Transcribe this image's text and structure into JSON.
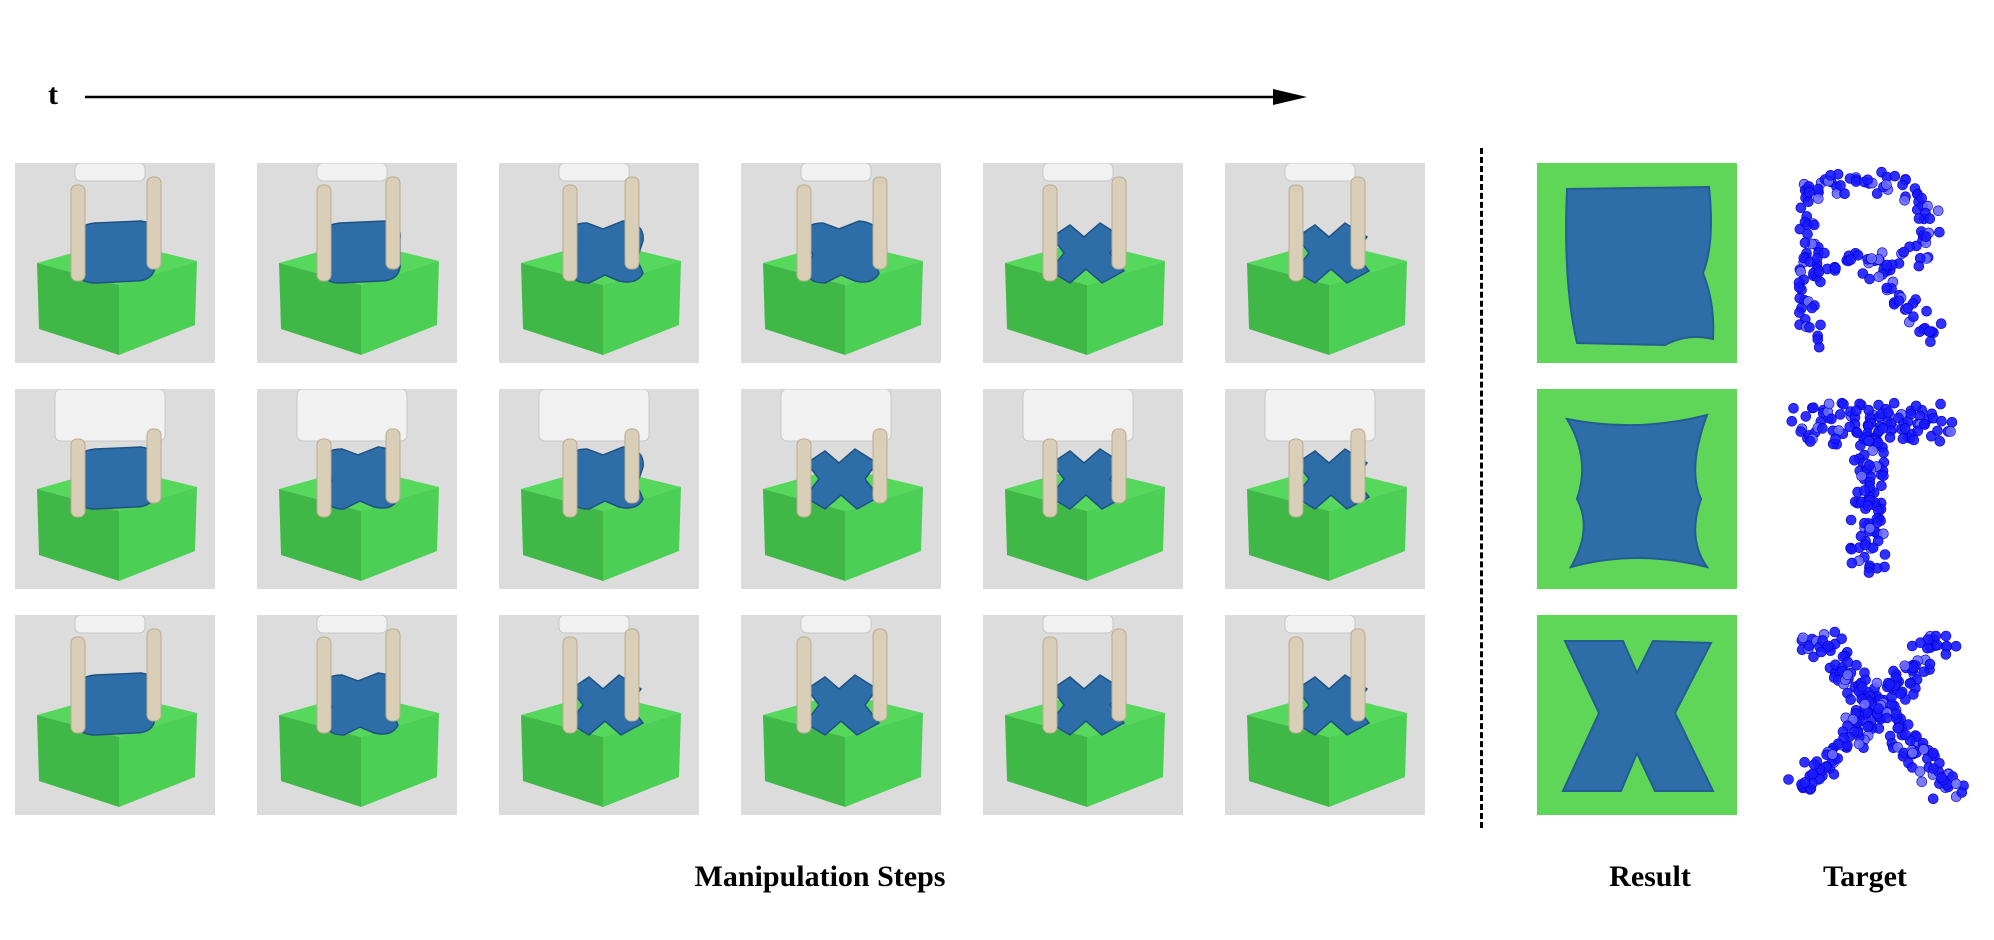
{
  "time_label": "t",
  "captions": {
    "steps": "Manipulation Steps",
    "result": "Result",
    "target": "Target"
  },
  "targets": [
    "R",
    "T",
    "X"
  ],
  "colors": {
    "frame_bg": "#dcdcdc",
    "platform_top": "#55d85c",
    "platform_side": "#3fb848",
    "clay": "#2d6ea8",
    "gripper": "#d9cfb8",
    "robot_body": "#f1f1f1",
    "result_bg": "#5fd657",
    "points": "#1a1aff"
  },
  "rows": [
    {
      "clay_stages": [
        "block",
        "block",
        "pinched",
        "pinched",
        "notched",
        "notched"
      ]
    },
    {
      "clay_stages": [
        "block",
        "pinched",
        "pinched",
        "notched",
        "notched",
        "notched"
      ]
    },
    {
      "clay_stages": [
        "block",
        "pinched",
        "notched",
        "notched",
        "notched",
        "notched"
      ]
    }
  ]
}
